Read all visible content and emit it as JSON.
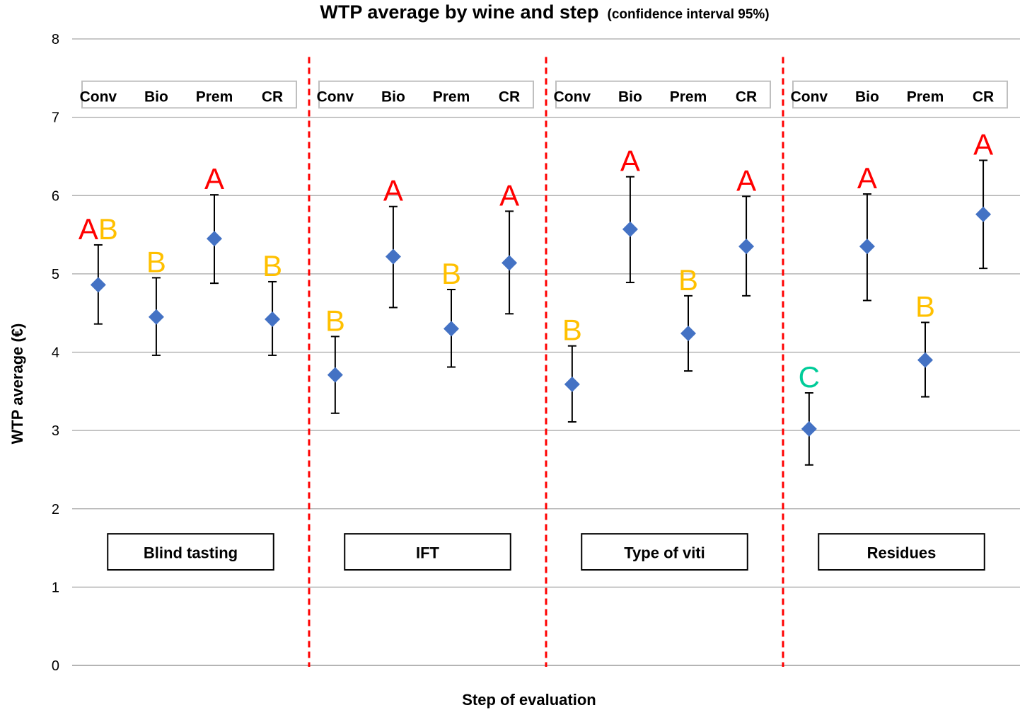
{
  "chart_data": {
    "type": "scatter",
    "title": "WTP average by wine and step",
    "subtitle": "(confidence interval 95%)",
    "xlabel": "Step of evaluation",
    "ylabel": "WTP average (€)",
    "ylim": [
      0,
      8
    ],
    "yticks": [
      "0",
      "1",
      "2",
      "3",
      "4",
      "5",
      "6",
      "7",
      "8"
    ],
    "grid": true,
    "marker_color": "#4472C4",
    "separator_color": "#FF0000",
    "letter_colors": {
      "A": "#FF0000",
      "B": "#FFC000",
      "C": "#00CC99"
    },
    "wines": [
      "Conv",
      "Bio",
      "Prem",
      "CR"
    ],
    "groups": [
      {
        "step": "Blind tasting",
        "wine_labels": [
          "Conv",
          "Bio",
          "Prem",
          "CR"
        ],
        "points": [
          {
            "wine": "Conv",
            "mean": 4.86,
            "lower": 4.36,
            "upper": 5.37,
            "letters": [
              "A",
              "B"
            ]
          },
          {
            "wine": "Bio",
            "mean": 4.45,
            "lower": 3.96,
            "upper": 4.95,
            "letters": [
              "B"
            ]
          },
          {
            "wine": "Prem",
            "mean": 5.45,
            "lower": 4.88,
            "upper": 6.01,
            "letters": [
              "A"
            ]
          },
          {
            "wine": "CR",
            "mean": 4.42,
            "lower": 3.96,
            "upper": 4.9,
            "letters": [
              "B"
            ]
          }
        ]
      },
      {
        "step": "IFT",
        "wine_labels": [
          "Conv",
          "Bio",
          "Prem",
          "CR"
        ],
        "points": [
          {
            "wine": "Conv",
            "mean": 3.71,
            "lower": 3.22,
            "upper": 4.2,
            "letters": [
              "B"
            ]
          },
          {
            "wine": "Bio",
            "mean": 5.22,
            "lower": 4.57,
            "upper": 5.86,
            "letters": [
              "A"
            ]
          },
          {
            "wine": "Prem",
            "mean": 4.3,
            "lower": 3.81,
            "upper": 4.8,
            "letters": [
              "B"
            ]
          },
          {
            "wine": "CR",
            "mean": 5.14,
            "lower": 4.49,
            "upper": 5.8,
            "letters": [
              "A"
            ]
          }
        ]
      },
      {
        "step": "Type  of viti",
        "wine_labels": [
          "Conv",
          "Bio",
          "Prem",
          "CR"
        ],
        "points": [
          {
            "wine": "Conv",
            "mean": 3.59,
            "lower": 3.11,
            "upper": 4.08,
            "letters": [
              "B"
            ]
          },
          {
            "wine": "Bio",
            "mean": 5.57,
            "lower": 4.89,
            "upper": 6.24,
            "letters": [
              "A"
            ]
          },
          {
            "wine": "Prem",
            "mean": 4.24,
            "lower": 3.76,
            "upper": 4.72,
            "letters": [
              "B"
            ]
          },
          {
            "wine": "CR",
            "mean": 5.35,
            "lower": 4.72,
            "upper": 5.99,
            "letters": [
              "A"
            ]
          }
        ]
      },
      {
        "step": "Residues",
        "wine_labels": [
          "Conv",
          "Bio",
          "Prem",
          "CR"
        ],
        "points": [
          {
            "wine": "Conv",
            "mean": 3.02,
            "lower": 2.56,
            "upper": 3.48,
            "letters": [
              "C"
            ]
          },
          {
            "wine": "Bio",
            "mean": 5.35,
            "lower": 4.66,
            "upper": 6.02,
            "letters": [
              "A"
            ]
          },
          {
            "wine": "Prem",
            "mean": 3.9,
            "lower": 3.43,
            "upper": 4.38,
            "letters": [
              "B"
            ]
          },
          {
            "wine": "CR",
            "mean": 5.76,
            "lower": 5.07,
            "upper": 6.45,
            "letters": [
              "A"
            ]
          }
        ]
      }
    ]
  }
}
